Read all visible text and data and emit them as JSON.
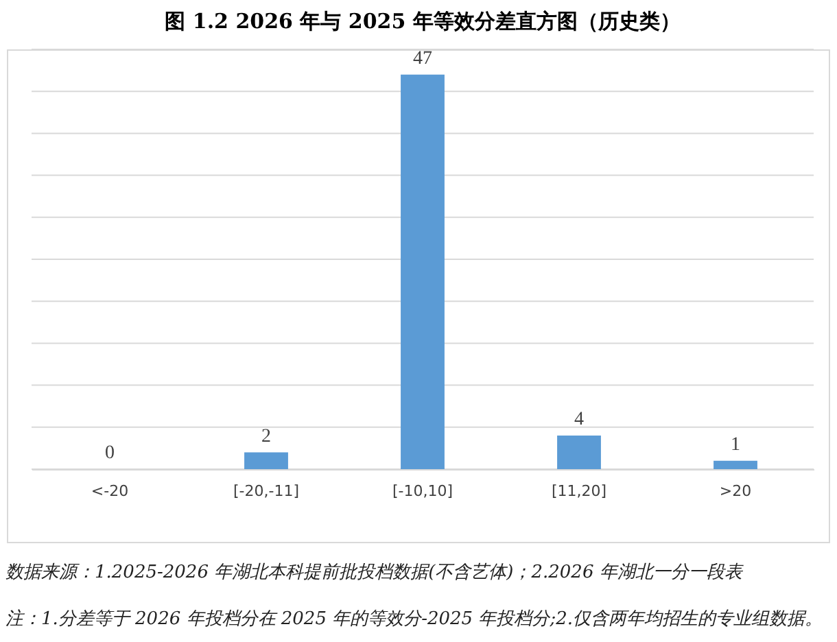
{
  "chart_data": {
    "type": "bar",
    "title": "图 1.2 2026 年与 2025 年等效分差直方图（历史类）",
    "categories": [
      "<-20",
      "[-20,-11]",
      "[-10,10]",
      "[11,20]",
      ">20"
    ],
    "values": [
      0,
      2,
      47,
      4,
      1
    ],
    "color": "#5b9bd5",
    "ylim": [
      0,
      50
    ],
    "yticks": [
      {
        "value": 0,
        "label": null
      },
      {
        "value": 5,
        "label": null
      },
      {
        "value": 10,
        "label": null
      },
      {
        "value": 15,
        "label": null
      },
      {
        "value": 20,
        "label": null
      },
      {
        "value": 25,
        "label": null
      },
      {
        "value": 30,
        "label": null
      },
      {
        "value": 35,
        "label": null
      },
      {
        "value": 40,
        "label": null
      },
      {
        "value": 45,
        "label": null
      },
      {
        "value": 50,
        "label": null
      }
    ],
    "tick_labels": "x",
    "grid": "y",
    "data_labels": true,
    "annotations": [
      "数据来源：1.2025-2026 年湖北本科提前批投档数据(不含艺体)；2.2026 年湖北一分一段表",
      "注：1.分差等于 2026 年投档分在 2025 年的等效分-2025 年投档分;2.仅含两年均招生的专业组数据。"
    ]
  }
}
